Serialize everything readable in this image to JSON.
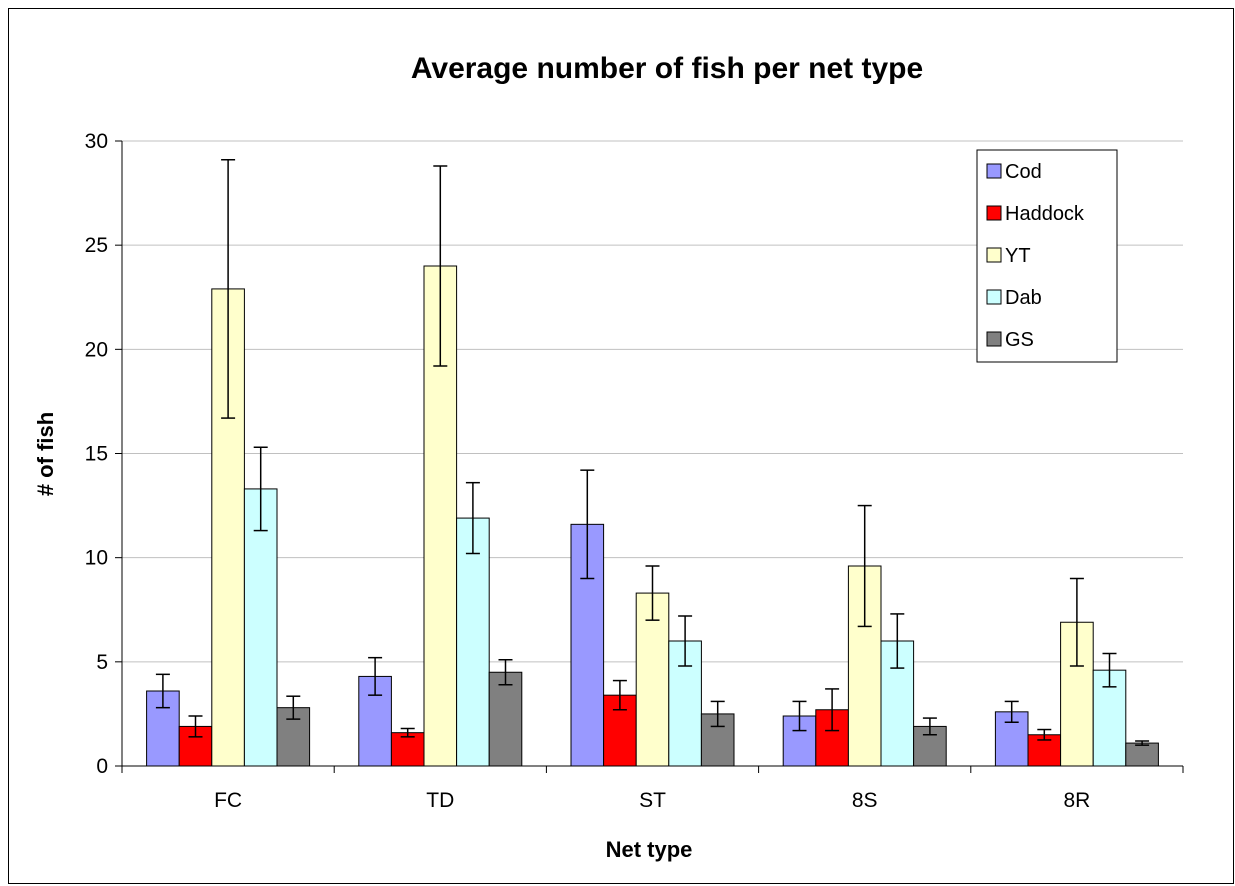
{
  "chart_data": {
    "type": "bar",
    "title": "Average number of fish per net type",
    "xlabel": "Net type",
    "ylabel": "# of fish",
    "categories": [
      "FC",
      "TD",
      "ST",
      "8S",
      "8R"
    ],
    "ylim": [
      0,
      30
    ],
    "yticks": [
      0,
      5,
      10,
      15,
      20,
      25,
      30
    ],
    "grid": true,
    "legend_position": "top-right",
    "series": [
      {
        "name": "Cod",
        "color": "#9999ff",
        "values": [
          3.6,
          4.3,
          11.6,
          2.4,
          2.6
        ],
        "error": [
          0.8,
          0.9,
          2.6,
          0.7,
          0.5
        ]
      },
      {
        "name": "Haddock",
        "color": "#ff0000",
        "values": [
          1.9,
          1.6,
          3.4,
          2.7,
          1.5
        ],
        "error": [
          0.5,
          0.2,
          0.7,
          1.0,
          0.25
        ]
      },
      {
        "name": "YT",
        "color": "#ffffcc",
        "values": [
          22.9,
          24.0,
          8.3,
          9.6,
          6.9
        ],
        "error": [
          6.2,
          4.8,
          1.3,
          2.9,
          2.1
        ]
      },
      {
        "name": "Dab",
        "color": "#ccffff",
        "values": [
          13.3,
          11.9,
          6.0,
          6.0,
          4.6
        ],
        "error": [
          2.0,
          1.7,
          1.2,
          1.3,
          0.8
        ]
      },
      {
        "name": "GS",
        "color": "#808080",
        "values": [
          2.8,
          4.5,
          2.5,
          1.9,
          1.1
        ],
        "error": [
          0.55,
          0.6,
          0.6,
          0.4,
          0.1
        ]
      }
    ]
  }
}
